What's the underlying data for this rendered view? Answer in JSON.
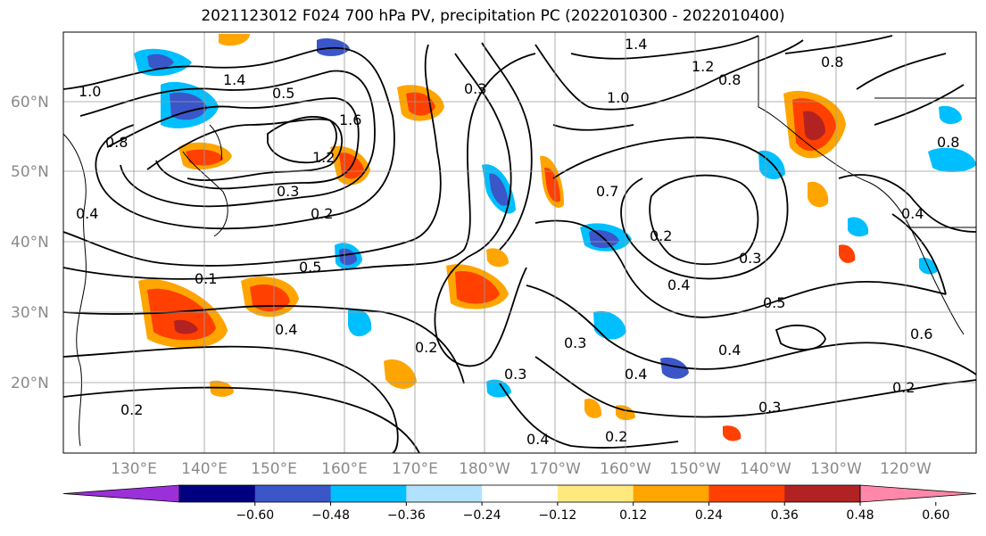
{
  "title": "2021123012 F024 700 hPa PV, precipitation PC (2022010300 - 2022010400)",
  "map": {
    "lat_labels": [
      "60°N",
      "50°N",
      "40°N",
      "30°N",
      "20°N"
    ],
    "lon_labels": [
      "130°E",
      "140°E",
      "150°E",
      "160°E",
      "170°E",
      "180°W",
      "170°W",
      "160°W",
      "150°W",
      "140°W",
      "130°W",
      "120°W"
    ],
    "contour_labels": [
      "1.0",
      "1.4",
      "0.5",
      "0.8",
      "1.2",
      "1.6",
      "0.3",
      "0.2",
      "0.4",
      "0.3",
      "0.5",
      "0.4",
      "0.1",
      "1.0",
      "0.7",
      "1.4",
      "1.2",
      "0.8",
      "0.3",
      "0.2",
      "0.4",
      "0.3",
      "0.5",
      "0.4",
      "0.2",
      "0.3",
      "0.4",
      "0.2",
      "0.6",
      "0.2",
      "0.3",
      "0.8",
      "0.8",
      "0.4",
      "0.2",
      "0.4"
    ]
  },
  "colorbar": {
    "colors": [
      "#9b30d9",
      "#000080",
      "#3a56c9",
      "#00bfff",
      "#b0e2ff",
      "#ffffff",
      "#ffe97f",
      "#ffa500",
      "#ff4000",
      "#b22222",
      "#ff88aa"
    ],
    "ticks": [
      "−0.60",
      "−0.48",
      "−0.36",
      "−0.24",
      "−0.12",
      "0.12",
      "0.24",
      "0.36",
      "0.48",
      "0.60"
    ]
  },
  "precip_colors": {
    "pos1": "#ffe97f",
    "pos2": "#ffa500",
    "pos3": "#ff4000",
    "pos4": "#b22222",
    "neg1": "#b0e2ff",
    "neg2": "#00bfff",
    "neg3": "#3a56c9",
    "neg4": "#000080"
  }
}
